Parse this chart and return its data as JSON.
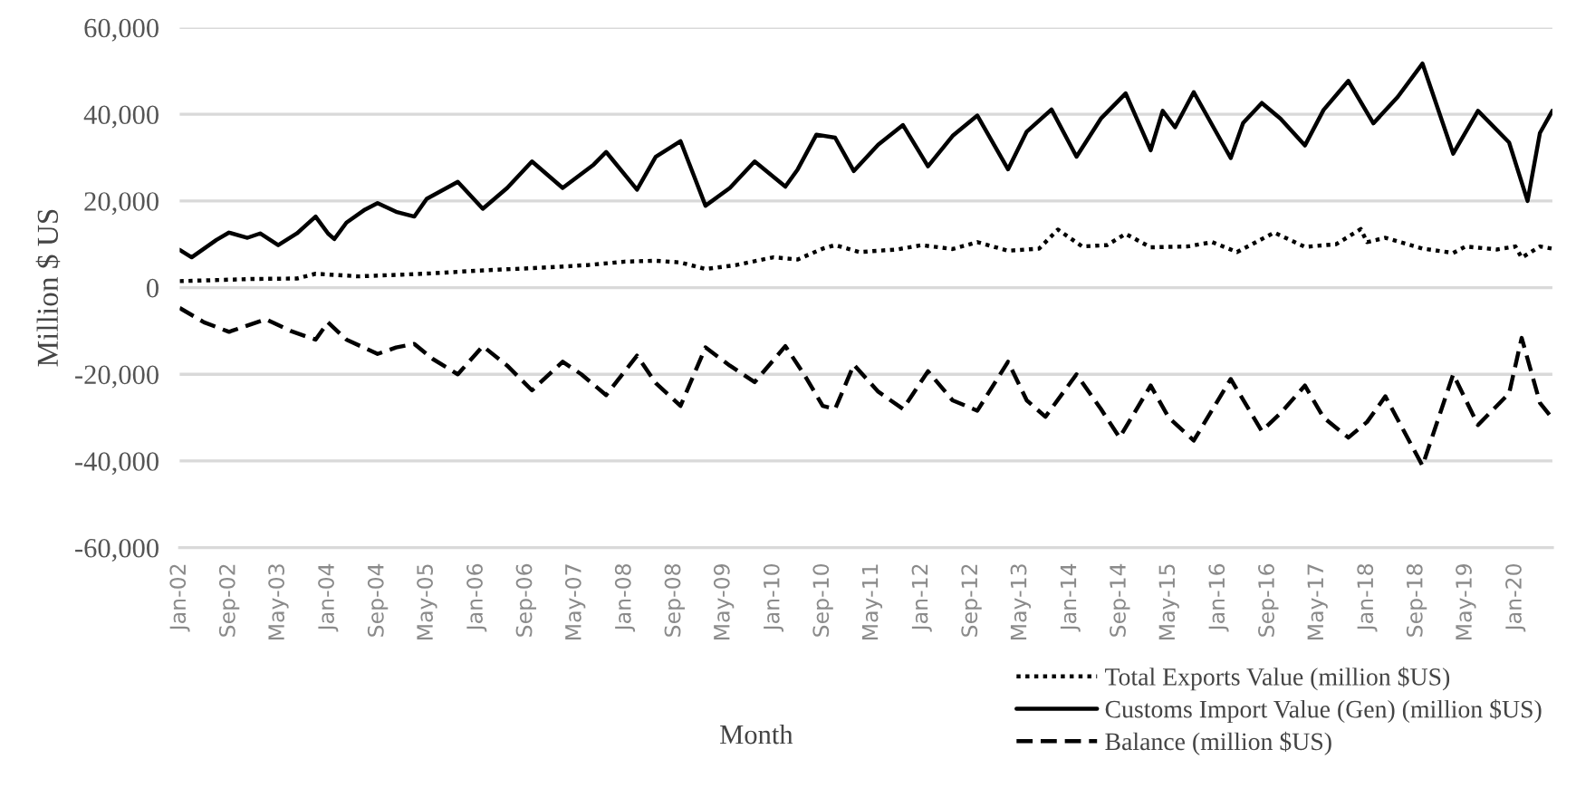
{
  "chart_data": {
    "type": "line",
    "xlabel": "Month",
    "ylabel": "Million $ US",
    "xlim": [
      "2002-01",
      "2020-07"
    ],
    "xticks": [
      {
        "value": "2002-01",
        "label": "Jan-02"
      },
      {
        "value": "2002-09",
        "label": "Sep-02"
      },
      {
        "value": "2003-05",
        "label": "May-03"
      },
      {
        "value": "2004-01",
        "label": "Jan-04"
      },
      {
        "value": "2004-09",
        "label": "Sep-04"
      },
      {
        "value": "2005-05",
        "label": "May-05"
      },
      {
        "value": "2006-01",
        "label": "Jan-06"
      },
      {
        "value": "2006-09",
        "label": "Sep-06"
      },
      {
        "value": "2007-05",
        "label": "May-07"
      },
      {
        "value": "2008-01",
        "label": "Jan-08"
      },
      {
        "value": "2008-09",
        "label": "Sep-08"
      },
      {
        "value": "2009-05",
        "label": "May-09"
      },
      {
        "value": "2010-01",
        "label": "Jan-10"
      },
      {
        "value": "2010-09",
        "label": "Sep-10"
      },
      {
        "value": "2011-05",
        "label": "May-11"
      },
      {
        "value": "2012-01",
        "label": "Jan-12"
      },
      {
        "value": "2012-09",
        "label": "Sep-12"
      },
      {
        "value": "2013-05",
        "label": "May-13"
      },
      {
        "value": "2014-01",
        "label": "Jan-14"
      },
      {
        "value": "2014-09",
        "label": "Sep-14"
      },
      {
        "value": "2015-05",
        "label": "May-15"
      },
      {
        "value": "2016-01",
        "label": "Jan-16"
      },
      {
        "value": "2016-09",
        "label": "Sep-16"
      },
      {
        "value": "2017-05",
        "label": "May-17"
      },
      {
        "value": "2018-01",
        "label": "Jan-18"
      },
      {
        "value": "2018-09",
        "label": "Sep-18"
      },
      {
        "value": "2019-05",
        "label": "May-19"
      },
      {
        "value": "2020-01",
        "label": "Jan-20"
      }
    ],
    "ylim": [
      -60000,
      60000
    ],
    "yticks": [
      {
        "value": -60000,
        "label": "-60,000"
      },
      {
        "value": -40000,
        "label": "-40,000"
      },
      {
        "value": -20000,
        "label": "-20,000"
      },
      0,
      {
        "value": 20000,
        "label": "20,000"
      },
      {
        "value": 40000,
        "label": "40,000"
      },
      {
        "value": 60000,
        "label": "60,000"
      }
    ],
    "grid": "y",
    "legend": "bottom right",
    "marker": "none",
    "series": [
      {
        "name": "Total Exports Value (million $US)",
        "color": "#000000",
        "line_style": "dotted",
        "x": [
          "2002-01",
          "2002-06",
          "2003-01",
          "2003-08",
          "2003-11",
          "2004-06",
          "2005-01",
          "2005-06",
          "2006-01",
          "2006-07",
          "2007-01",
          "2007-07",
          "2008-01",
          "2008-06",
          "2008-10",
          "2009-02",
          "2009-07",
          "2010-01",
          "2010-05",
          "2010-09",
          "2010-11",
          "2011-03",
          "2011-09",
          "2012-01",
          "2012-06",
          "2012-10",
          "2013-03",
          "2013-08",
          "2013-11",
          "2014-03",
          "2014-07",
          "2014-10",
          "2015-02",
          "2015-08",
          "2015-12",
          "2016-04",
          "2016-10",
          "2017-03",
          "2017-08",
          "2017-12",
          "2018-01",
          "2018-04",
          "2018-10",
          "2019-03",
          "2019-05",
          "2019-10",
          "2020-01",
          "2020-02",
          "2020-05",
          "2020-07"
        ],
        "values": [
          1500,
          1700,
          2000,
          2100,
          3200,
          2600,
          3000,
          3300,
          3900,
          4300,
          4700,
          5200,
          6000,
          6200,
          5800,
          4300,
          5200,
          7000,
          6500,
          9000,
          9800,
          8200,
          8800,
          9800,
          8900,
          10500,
          8500,
          9000,
          13400,
          9500,
          9800,
          12400,
          9300,
          9500,
          10500,
          8200,
          12700,
          9400,
          10000,
          13500,
          10500,
          11500,
          9000,
          8000,
          9500,
          8800,
          9500,
          6900,
          9500,
          9000
        ]
      },
      {
        "name": "Customs Import Value (Gen) (million $US)",
        "color": "#000000",
        "line_style": "solid",
        "x": [
          "2002-01",
          "2002-03",
          "2002-07",
          "2002-09",
          "2002-12",
          "2003-02",
          "2003-05",
          "2003-08",
          "2003-11",
          "2004-01",
          "2004-02",
          "2004-04",
          "2004-07",
          "2004-09",
          "2004-12",
          "2005-03",
          "2005-05",
          "2005-10",
          "2006-02",
          "2006-06",
          "2006-10",
          "2007-03",
          "2007-08",
          "2007-10",
          "2008-03",
          "2008-06",
          "2008-10",
          "2009-02",
          "2009-06",
          "2009-10",
          "2010-03",
          "2010-05",
          "2010-08",
          "2010-11",
          "2011-02",
          "2011-06",
          "2011-10",
          "2012-02",
          "2012-06",
          "2012-10",
          "2013-03",
          "2013-06",
          "2013-10",
          "2014-02",
          "2014-06",
          "2014-10",
          "2015-02",
          "2015-04",
          "2015-06",
          "2015-09",
          "2016-03",
          "2016-05",
          "2016-08",
          "2016-11",
          "2017-03",
          "2017-06",
          "2017-10",
          "2018-02",
          "2018-06",
          "2018-10",
          "2019-03",
          "2019-07",
          "2019-12",
          "2020-03",
          "2020-05",
          "2020-07"
        ],
        "values": [
          8700,
          7000,
          11000,
          12700,
          11500,
          12500,
          9800,
          12500,
          16400,
          12500,
          11200,
          15000,
          18000,
          19500,
          17500,
          16400,
          20500,
          24400,
          18200,
          23000,
          29100,
          23000,
          28400,
          31300,
          22600,
          30200,
          33800,
          18900,
          23000,
          29100,
          23300,
          27300,
          35300,
          34600,
          26900,
          33000,
          37500,
          28000,
          35000,
          39700,
          27300,
          36000,
          41100,
          30200,
          39000,
          44800,
          31700,
          40800,
          37000,
          45100,
          29900,
          38000,
          42600,
          39000,
          32800,
          41000,
          47700,
          37900,
          44000,
          51700,
          30900,
          40800,
          33500,
          20000,
          35700,
          40800
        ]
      },
      {
        "name": "Balance (million $US)",
        "color": "#000000",
        "line_style": "dashed",
        "x": [
          "2002-01",
          "2002-05",
          "2002-09",
          "2003-03",
          "2003-07",
          "2003-11",
          "2004-01",
          "2004-04",
          "2004-09",
          "2004-12",
          "2005-03",
          "2005-06",
          "2005-10",
          "2006-02",
          "2006-06",
          "2006-10",
          "2007-03",
          "2007-06",
          "2007-10",
          "2008-03",
          "2008-06",
          "2008-10",
          "2009-02",
          "2009-06",
          "2009-10",
          "2010-03",
          "2010-06",
          "2010-09",
          "2010-11",
          "2011-02",
          "2011-06",
          "2011-10",
          "2012-02",
          "2012-06",
          "2012-10",
          "2013-03",
          "2013-06",
          "2013-09",
          "2014-02",
          "2014-06",
          "2014-09",
          "2015-02",
          "2015-05",
          "2015-09",
          "2016-03",
          "2016-08",
          "2016-11",
          "2017-03",
          "2017-06",
          "2017-10",
          "2018-01",
          "2018-04",
          "2018-10",
          "2019-03",
          "2019-07",
          "2019-12",
          "2020-02",
          "2020-05",
          "2020-07"
        ],
        "values": [
          -4700,
          -8000,
          -10200,
          -7300,
          -10000,
          -12000,
          -8000,
          -12000,
          -15300,
          -13800,
          -13000,
          -16500,
          -20000,
          -13500,
          -18000,
          -23700,
          -17100,
          -20000,
          -24800,
          -15700,
          -22000,
          -27300,
          -13800,
          -18000,
          -21800,
          -13500,
          -20000,
          -27300,
          -28000,
          -17800,
          -24000,
          -28000,
          -19300,
          -26000,
          -28400,
          -17100,
          -26000,
          -29800,
          -20000,
          -28000,
          -34600,
          -22600,
          -30000,
          -35300,
          -21100,
          -33100,
          -29000,
          -22600,
          -30000,
          -34600,
          -31000,
          -25100,
          -41100,
          -20000,
          -31700,
          -24400,
          -11600,
          -26600,
          -30200
        ]
      }
    ]
  }
}
